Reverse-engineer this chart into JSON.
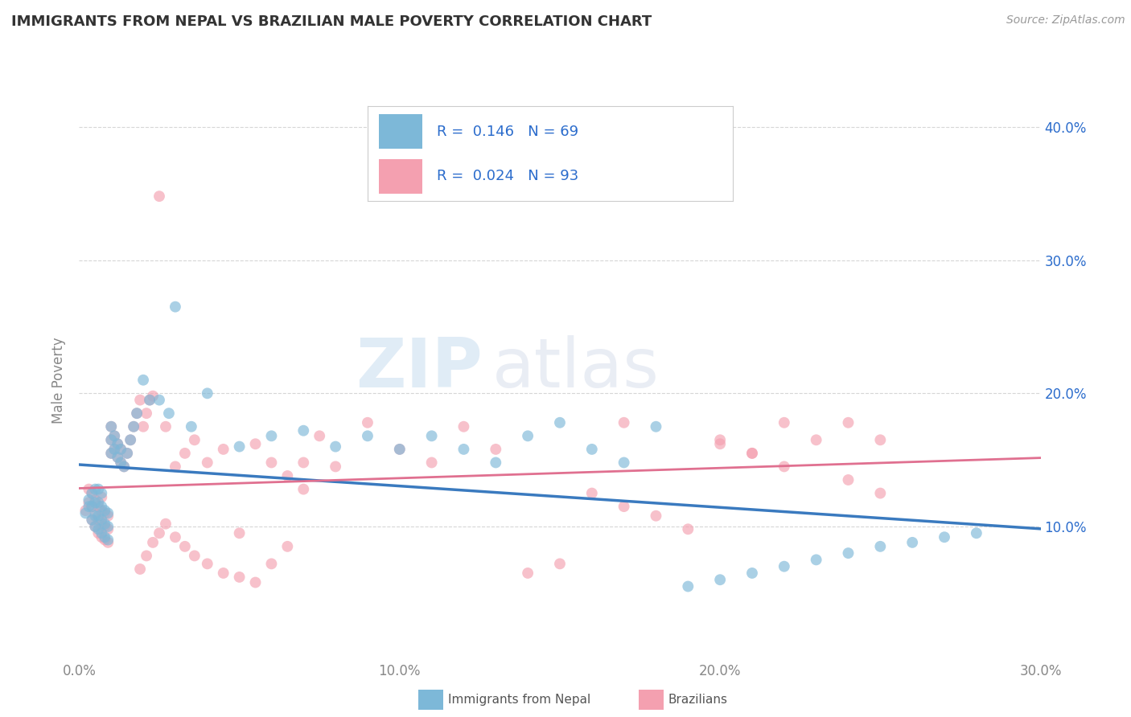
{
  "title": "IMMIGRANTS FROM NEPAL VS BRAZILIAN MALE POVERTY CORRELATION CHART",
  "source_text": "Source: ZipAtlas.com",
  "ylabel": "Male Poverty",
  "xlim": [
    0.0,
    0.3
  ],
  "ylim": [
    0.0,
    0.42
  ],
  "xtick_labels": [
    "0.0%",
    "10.0%",
    "20.0%",
    "30.0%"
  ],
  "xtick_values": [
    0.0,
    0.1,
    0.2,
    0.3
  ],
  "ytick_labels_right": [
    "10.0%",
    "20.0%",
    "30.0%",
    "40.0%"
  ],
  "ytick_values_right": [
    0.1,
    0.2,
    0.3,
    0.4
  ],
  "nepal_color": "#7db8d8",
  "brazil_color": "#f4a0b0",
  "nepal_line_color": "#3a7abf",
  "brazil_line_color": "#e07090",
  "legend_R_nepal": "0.146",
  "legend_N_nepal": "69",
  "legend_R_brazil": "0.024",
  "legend_N_brazil": "93",
  "legend_text_color": "#2b6ccc",
  "watermark_zip": "ZIP",
  "watermark_atlas": "atlas",
  "background_color": "#ffffff",
  "grid_color": "#cccccc",
  "nepal_x": [
    0.002,
    0.003,
    0.003,
    0.004,
    0.004,
    0.004,
    0.005,
    0.005,
    0.005,
    0.005,
    0.006,
    0.006,
    0.006,
    0.006,
    0.007,
    0.007,
    0.007,
    0.007,
    0.008,
    0.008,
    0.008,
    0.009,
    0.009,
    0.009,
    0.01,
    0.01,
    0.01,
    0.011,
    0.011,
    0.012,
    0.012,
    0.013,
    0.013,
    0.014,
    0.015,
    0.016,
    0.017,
    0.018,
    0.02,
    0.022,
    0.025,
    0.028,
    0.03,
    0.035,
    0.04,
    0.05,
    0.06,
    0.07,
    0.08,
    0.09,
    0.1,
    0.11,
    0.12,
    0.13,
    0.14,
    0.15,
    0.16,
    0.17,
    0.18,
    0.19,
    0.2,
    0.21,
    0.22,
    0.23,
    0.24,
    0.25,
    0.26,
    0.27,
    0.28
  ],
  "nepal_y": [
    0.11,
    0.115,
    0.12,
    0.105,
    0.115,
    0.125,
    0.1,
    0.108,
    0.118,
    0.128,
    0.098,
    0.108,
    0.118,
    0.128,
    0.095,
    0.105,
    0.115,
    0.125,
    0.092,
    0.102,
    0.112,
    0.09,
    0.1,
    0.11,
    0.155,
    0.165,
    0.175,
    0.158,
    0.168,
    0.152,
    0.162,
    0.148,
    0.158,
    0.145,
    0.155,
    0.165,
    0.175,
    0.185,
    0.21,
    0.195,
    0.195,
    0.185,
    0.265,
    0.175,
    0.2,
    0.16,
    0.168,
    0.172,
    0.16,
    0.168,
    0.158,
    0.168,
    0.158,
    0.148,
    0.168,
    0.178,
    0.158,
    0.148,
    0.175,
    0.055,
    0.06,
    0.065,
    0.07,
    0.075,
    0.08,
    0.085,
    0.088,
    0.092,
    0.095
  ],
  "brazil_x": [
    0.002,
    0.003,
    0.003,
    0.004,
    0.004,
    0.004,
    0.005,
    0.005,
    0.005,
    0.006,
    0.006,
    0.006,
    0.007,
    0.007,
    0.007,
    0.007,
    0.008,
    0.008,
    0.008,
    0.009,
    0.009,
    0.009,
    0.01,
    0.01,
    0.01,
    0.011,
    0.011,
    0.012,
    0.012,
    0.013,
    0.013,
    0.014,
    0.015,
    0.016,
    0.017,
    0.018,
    0.019,
    0.02,
    0.021,
    0.022,
    0.023,
    0.025,
    0.027,
    0.03,
    0.033,
    0.036,
    0.04,
    0.045,
    0.05,
    0.055,
    0.06,
    0.065,
    0.07,
    0.075,
    0.08,
    0.09,
    0.1,
    0.11,
    0.12,
    0.13,
    0.14,
    0.15,
    0.16,
    0.17,
    0.18,
    0.19,
    0.2,
    0.21,
    0.22,
    0.23,
    0.24,
    0.25,
    0.019,
    0.021,
    0.023,
    0.025,
    0.027,
    0.03,
    0.033,
    0.036,
    0.04,
    0.045,
    0.05,
    0.055,
    0.06,
    0.065,
    0.07,
    0.17,
    0.2,
    0.21,
    0.22,
    0.24,
    0.25
  ],
  "brazil_y": [
    0.112,
    0.118,
    0.128,
    0.105,
    0.115,
    0.125,
    0.1,
    0.11,
    0.12,
    0.095,
    0.105,
    0.115,
    0.092,
    0.102,
    0.112,
    0.122,
    0.09,
    0.1,
    0.11,
    0.088,
    0.098,
    0.108,
    0.155,
    0.165,
    0.175,
    0.158,
    0.168,
    0.152,
    0.162,
    0.148,
    0.158,
    0.145,
    0.155,
    0.165,
    0.175,
    0.185,
    0.195,
    0.175,
    0.185,
    0.195,
    0.198,
    0.348,
    0.175,
    0.145,
    0.155,
    0.165,
    0.148,
    0.158,
    0.095,
    0.162,
    0.148,
    0.138,
    0.128,
    0.168,
    0.145,
    0.178,
    0.158,
    0.148,
    0.175,
    0.158,
    0.065,
    0.072,
    0.125,
    0.115,
    0.108,
    0.098,
    0.162,
    0.155,
    0.178,
    0.165,
    0.178,
    0.165,
    0.068,
    0.078,
    0.088,
    0.095,
    0.102,
    0.092,
    0.085,
    0.078,
    0.072,
    0.065,
    0.062,
    0.058,
    0.072,
    0.085,
    0.148,
    0.178,
    0.165,
    0.155,
    0.145,
    0.135,
    0.125
  ]
}
